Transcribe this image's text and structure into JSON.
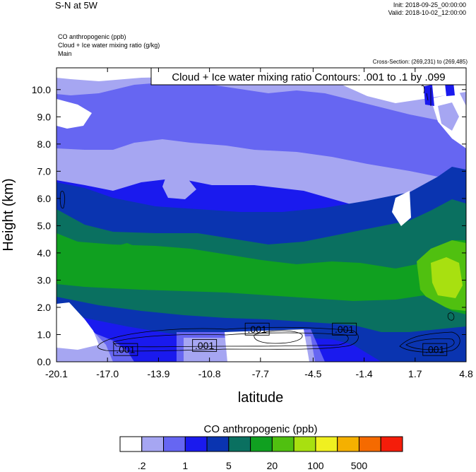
{
  "header": {
    "title": "S-N at 5W",
    "init": "Init: 2018-09-25_00:00:00",
    "valid": "Valid: 2018-10-02_12:00:00",
    "var_co": "CO anthropogenic   (ppb)",
    "var_cloud": "Cloud + Ice water mixing ratio   (g/kg)",
    "domain": "Main",
    "cross_section": "Cross-Section: (269,231) to (269,485)"
  },
  "chart_data": {
    "type": "heatmap",
    "title": "Cloud + Ice water mixing ratio Contours: .001 to .1 by .099",
    "xlabel": "latitude",
    "ylabel": "Height (km)",
    "xlim": [
      -20.1,
      4.8
    ],
    "ylim": [
      0.0,
      10.8
    ],
    "x_ticks": [
      -20.1,
      -17.0,
      -13.9,
      -10.8,
      -7.7,
      -4.5,
      -1.4,
      1.7,
      4.8
    ],
    "x_tick_labels": [
      "-20.1",
      "-17.0",
      "-13.9",
      "-10.8",
      "-7.7",
      "-4.5",
      "-1.4",
      "1.7",
      "4.8"
    ],
    "y_ticks": [
      0.0,
      1.0,
      2.0,
      3.0,
      4.0,
      5.0,
      6.0,
      7.0,
      8.0,
      9.0,
      10.0
    ],
    "y_tick_labels": [
      "0.0",
      "1.0",
      "2.0",
      "3.0",
      "4.0",
      "5.0",
      "6.0",
      "7.0",
      "8.0",
      "9.0",
      "10.0"
    ],
    "contour_labels": [
      {
        "x": -15.9,
        "y": 0.45,
        "text": ".001"
      },
      {
        "x": -11.1,
        "y": 0.6,
        "text": ".001"
      },
      {
        "x": -7.9,
        "y": 1.2,
        "text": ".001"
      },
      {
        "x": -2.6,
        "y": 1.2,
        "text": ".001"
      },
      {
        "x": 2.9,
        "y": 0.45,
        "text": ".001"
      }
    ],
    "colorbar": {
      "title": "CO anthropogenic  (ppb)",
      "colors": [
        "#ffffff",
        "#a6a6f2",
        "#6666f2",
        "#1a1aee",
        "#0a34b0",
        "#0a7060",
        "#10a020",
        "#50c010",
        "#a8e010",
        "#f0f020",
        "#f5b000",
        "#f56a00",
        "#f51d0a"
      ],
      "tick_labels": [
        {
          "label": ".2",
          "after": 1
        },
        {
          "label": "1",
          "after": 3
        },
        {
          "label": "5",
          "after": 5
        },
        {
          "label": "20",
          "after": 7
        },
        {
          "label": "100",
          "after": 9
        },
        {
          "label": "500",
          "after": 11
        }
      ]
    }
  }
}
